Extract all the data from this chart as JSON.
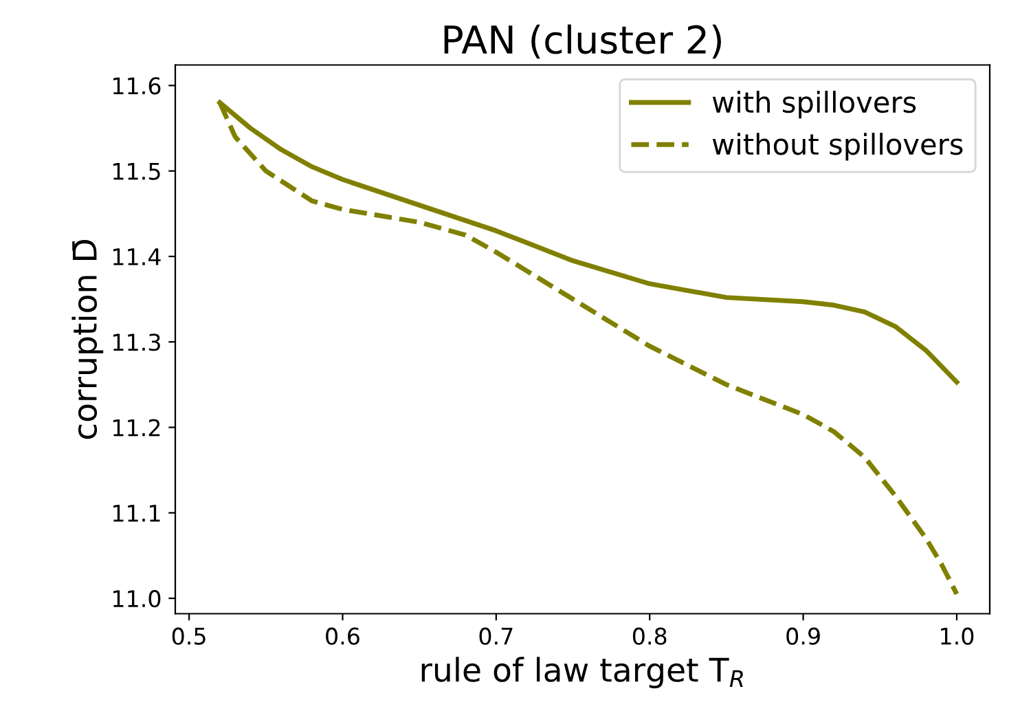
{
  "chart_data": {
    "type": "line",
    "title": "PAN (cluster 2)",
    "xlabel": "rule of law target T$_{R}$",
    "ylabel": "corruption D̄",
    "xlim": [
      0.491,
      1.0215
    ],
    "ylim": [
      10.982,
      11.624
    ],
    "xticks": [
      0.5,
      0.6,
      0.7,
      0.8,
      0.9,
      {
        "value": 1,
        "label": "1.0"
      }
    ],
    "yticks": [
      {
        "value": 11,
        "label": "11.0"
      },
      11.1,
      11.2,
      11.3,
      11.4,
      11.5,
      11.6
    ],
    "legend": "top right",
    "grid": false,
    "series": [
      {
        "name": "with spillovers",
        "color": "#808000",
        "line_style": "solid",
        "x": [
          0.52,
          0.54,
          0.56,
          0.58,
          0.6,
          0.65,
          0.7,
          0.75,
          0.8,
          0.85,
          0.9,
          0.92,
          0.94,
          0.96,
          0.98,
          1.0
        ],
        "values": [
          11.58,
          11.55,
          11.525,
          11.505,
          11.49,
          11.46,
          11.43,
          11.395,
          11.368,
          11.352,
          11.347,
          11.343,
          11.335,
          11.318,
          11.29,
          11.253
        ]
      },
      {
        "name": "without spillovers",
        "color": "#808000",
        "line_style": "dashed",
        "x": [
          0.52,
          0.53,
          0.55,
          0.58,
          0.6,
          0.65,
          0.68,
          0.7,
          0.75,
          0.8,
          0.85,
          0.9,
          0.92,
          0.94,
          0.96,
          0.98,
          0.99,
          1.0
        ],
        "values": [
          11.58,
          11.54,
          11.5,
          11.465,
          11.455,
          11.44,
          11.425,
          11.405,
          11.35,
          11.295,
          11.25,
          11.215,
          11.195,
          11.165,
          11.12,
          11.07,
          11.04,
          11.005
        ]
      }
    ]
  }
}
